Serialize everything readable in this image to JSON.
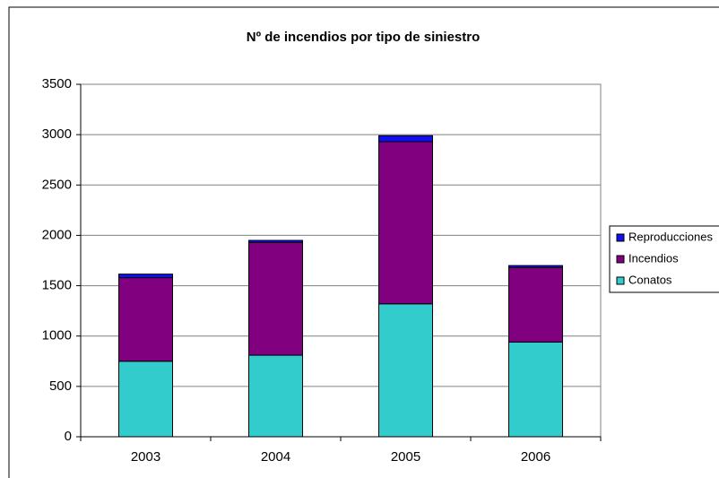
{
  "chart_data": {
    "type": "stacked_bar",
    "title": "Nº de incendios por tipo de siniestro",
    "categories": [
      "2003",
      "2004",
      "2005",
      "2006"
    ],
    "series": [
      {
        "name": "Conatos",
        "color": "#33cccc",
        "values": [
          750,
          810,
          1320,
          940
        ]
      },
      {
        "name": "Incendios",
        "color": "#800080",
        "values": [
          830,
          1120,
          1610,
          740
        ]
      },
      {
        "name": "Reproducciones",
        "color": "#1010ee",
        "values": [
          35,
          20,
          60,
          20
        ]
      }
    ],
    "ylim": [
      0,
      3500
    ],
    "yticks": [
      0,
      500,
      1000,
      1500,
      2000,
      2500,
      3000,
      3500
    ],
    "grid": true,
    "legend": "right"
  }
}
